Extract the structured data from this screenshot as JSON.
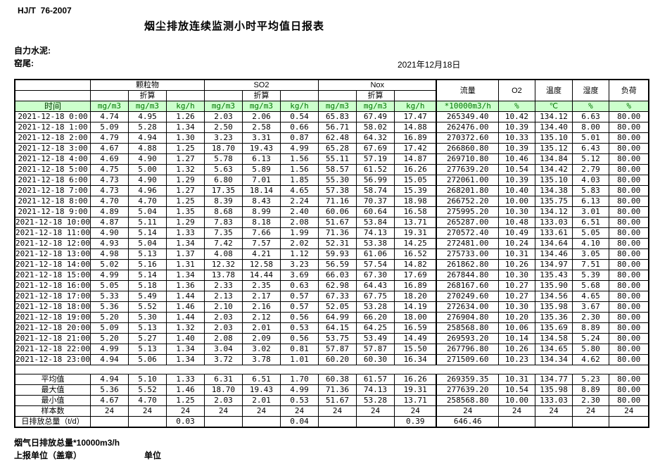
{
  "page": {
    "standard": "HJ/T  76-2007",
    "title": "烟尘排放连续监测小时平均值日报表",
    "company": "自力水泥:",
    "site": "窑尾:",
    "date": "2021年12月18日"
  },
  "colors": {
    "header_bg": "#ccffcc",
    "header_text": "#007500",
    "grid": "#000000"
  },
  "table": {
    "time_label": "时间",
    "converted_label": "折算",
    "groups": {
      "pm": "颗粒物",
      "so2": "SO2",
      "nox": "Nox",
      "flow": "流量",
      "o2": "O2",
      "temp": "温度",
      "humidity": "湿度",
      "load": "负荷"
    },
    "units": [
      "mg/m3",
      "mg/m3",
      "kg/h",
      "mg/m3",
      "mg/m3",
      "kg/h",
      "mg/m3",
      "mg/m3",
      "kg/h",
      "*10000m3/h",
      "%",
      "℃",
      "%",
      "%"
    ],
    "rows": [
      {
        "time": "2021-12-18 0:00",
        "values": [
          "4.74",
          "4.95",
          "1.26",
          "2.03",
          "2.06",
          "0.54",
          "65.83",
          "67.49",
          "17.47",
          "265349.40",
          "10.42",
          "134.12",
          "6.63",
          "80.00"
        ]
      },
      {
        "time": "2021-12-18 1:00",
        "values": [
          "5.09",
          "5.28",
          "1.34",
          "2.50",
          "2.58",
          "0.66",
          "56.71",
          "58.02",
          "14.88",
          "262476.00",
          "10.39",
          "134.40",
          "8.00",
          "80.00"
        ]
      },
      {
        "time": "2021-12-18 2:00",
        "values": [
          "4.79",
          "4.94",
          "1.30",
          "3.23",
          "3.31",
          "0.87",
          "62.48",
          "64.32",
          "16.89",
          "270372.60",
          "10.33",
          "135.10",
          "5.01",
          "80.00"
        ]
      },
      {
        "time": "2021-12-18 3:00",
        "values": [
          "4.67",
          "4.88",
          "1.25",
          "18.70",
          "19.43",
          "4.99",
          "65.28",
          "67.69",
          "17.42",
          "266860.80",
          "10.39",
          "135.12",
          "6.43",
          "80.00"
        ]
      },
      {
        "time": "2021-12-18 4:00",
        "values": [
          "4.69",
          "4.90",
          "1.27",
          "5.78",
          "6.13",
          "1.56",
          "55.11",
          "57.19",
          "14.87",
          "269710.80",
          "10.46",
          "134.84",
          "5.12",
          "80.00"
        ]
      },
      {
        "time": "2021-12-18 5:00",
        "values": [
          "4.75",
          "5.00",
          "1.32",
          "5.63",
          "5.89",
          "1.56",
          "58.57",
          "61.52",
          "16.26",
          "277639.20",
          "10.54",
          "134.42",
          "2.79",
          "80.00"
        ]
      },
      {
        "time": "2021-12-18 6:00",
        "values": [
          "4.73",
          "4.90",
          "1.29",
          "6.80",
          "7.01",
          "1.85",
          "55.30",
          "56.99",
          "15.05",
          "272061.00",
          "10.39",
          "135.10",
          "4.03",
          "80.00"
        ]
      },
      {
        "time": "2021-12-18 7:00",
        "values": [
          "4.73",
          "4.96",
          "1.27",
          "17.35",
          "18.14",
          "4.65",
          "57.38",
          "58.74",
          "15.39",
          "268201.80",
          "10.40",
          "134.38",
          "5.83",
          "80.00"
        ]
      },
      {
        "time": "2021-12-18 8:00",
        "values": [
          "4.70",
          "4.70",
          "1.25",
          "8.39",
          "8.43",
          "2.24",
          "71.16",
          "70.37",
          "18.98",
          "266752.20",
          "10.00",
          "135.75",
          "6.13",
          "80.00"
        ]
      },
      {
        "time": "2021-12-18 9:00",
        "values": [
          "4.89",
          "5.04",
          "1.35",
          "8.68",
          "8.99",
          "2.40",
          "60.06",
          "60.64",
          "16.58",
          "275995.20",
          "10.30",
          "134.12",
          "3.01",
          "80.00"
        ]
      },
      {
        "time": "2021-12-18 10:00",
        "values": [
          "4.87",
          "5.11",
          "1.29",
          "7.83",
          "8.18",
          "2.08",
          "51.67",
          "53.84",
          "13.71",
          "265287.00",
          "10.48",
          "133.03",
          "6.51",
          "80.00"
        ]
      },
      {
        "time": "2021-12-18 11:00",
        "values": [
          "4.90",
          "5.14",
          "1.33",
          "7.35",
          "7.66",
          "1.99",
          "71.36",
          "74.13",
          "19.31",
          "270572.40",
          "10.49",
          "133.61",
          "5.05",
          "80.00"
        ]
      },
      {
        "time": "2021-12-18 12:00",
        "values": [
          "4.93",
          "5.04",
          "1.34",
          "7.42",
          "7.57",
          "2.02",
          "52.31",
          "53.38",
          "14.25",
          "272481.00",
          "10.24",
          "134.64",
          "4.10",
          "80.00"
        ]
      },
      {
        "time": "2021-12-18 13:00",
        "values": [
          "4.98",
          "5.13",
          "1.37",
          "4.08",
          "4.21",
          "1.12",
          "59.93",
          "61.06",
          "16.52",
          "275733.00",
          "10.31",
          "134.46",
          "3.05",
          "80.00"
        ]
      },
      {
        "time": "2021-12-18 14:00",
        "values": [
          "5.02",
          "5.16",
          "1.31",
          "12.32",
          "12.58",
          "3.23",
          "56.59",
          "57.54",
          "14.82",
          "261862.80",
          "10.26",
          "134.97",
          "7.51",
          "80.00"
        ]
      },
      {
        "time": "2021-12-18 15:00",
        "values": [
          "4.99",
          "5.14",
          "1.34",
          "13.78",
          "14.44",
          "3.69",
          "66.03",
          "67.30",
          "17.69",
          "267844.80",
          "10.30",
          "135.43",
          "5.39",
          "80.00"
        ]
      },
      {
        "time": "2021-12-18 16:00",
        "values": [
          "5.05",
          "5.18",
          "1.36",
          "2.33",
          "2.35",
          "0.63",
          "62.98",
          "64.43",
          "16.89",
          "268167.60",
          "10.27",
          "135.90",
          "5.68",
          "80.00"
        ]
      },
      {
        "time": "2021-12-18 17:00",
        "values": [
          "5.33",
          "5.49",
          "1.44",
          "2.13",
          "2.17",
          "0.57",
          "67.33",
          "67.75",
          "18.20",
          "270249.60",
          "10.27",
          "134.56",
          "4.65",
          "80.00"
        ]
      },
      {
        "time": "2021-12-18 18:00",
        "values": [
          "5.36",
          "5.52",
          "1.46",
          "2.10",
          "2.16",
          "0.57",
          "52.05",
          "53.28",
          "14.19",
          "272634.00",
          "10.30",
          "135.98",
          "3.67",
          "80.00"
        ]
      },
      {
        "time": "2021-12-18 19:00",
        "values": [
          "5.20",
          "5.30",
          "1.44",
          "2.03",
          "2.12",
          "0.56",
          "64.99",
          "66.20",
          "18.00",
          "276904.80",
          "10.20",
          "135.36",
          "2.30",
          "80.00"
        ]
      },
      {
        "time": "2021-12-18 20:00",
        "values": [
          "5.09",
          "5.13",
          "1.32",
          "2.03",
          "2.01",
          "0.53",
          "64.15",
          "64.25",
          "16.59",
          "258568.80",
          "10.06",
          "135.69",
          "8.89",
          "80.00"
        ]
      },
      {
        "time": "2021-12-18 21:00",
        "values": [
          "5.20",
          "5.27",
          "1.40",
          "2.08",
          "2.09",
          "0.56",
          "53.75",
          "53.49",
          "14.49",
          "269593.20",
          "10.14",
          "134.58",
          "5.24",
          "80.00"
        ]
      },
      {
        "time": "2021-12-18 22:00",
        "values": [
          "4.99",
          "5.13",
          "1.34",
          "3.04",
          "3.02",
          "0.81",
          "57.87",
          "57.87",
          "15.50",
          "267796.80",
          "10.26",
          "134.65",
          "5.80",
          "80.00"
        ]
      },
      {
        "time": "2021-12-18 23:00",
        "values": [
          "4.94",
          "5.06",
          "1.34",
          "3.72",
          "3.78",
          "1.01",
          "60.20",
          "60.30",
          "16.34",
          "271509.60",
          "10.23",
          "134.34",
          "4.62",
          "80.00"
        ]
      }
    ],
    "summary": [
      {
        "label": "平均值",
        "values": [
          "4.94",
          "5.10",
          "1.33",
          "6.31",
          "6.51",
          "1.70",
          "60.38",
          "61.57",
          "16.26",
          "269359.35",
          "10.31",
          "134.77",
          "5.23",
          "80.00"
        ]
      },
      {
        "label": "最大值",
        "values": [
          "5.36",
          "5.52",
          "1.46",
          "18.70",
          "19.43",
          "4.99",
          "71.36",
          "74.13",
          "19.31",
          "277639.20",
          "10.54",
          "135.98",
          "8.89",
          "80.00"
        ]
      },
      {
        "label": "最小值",
        "values": [
          "4.67",
          "4.70",
          "1.25",
          "2.03",
          "2.01",
          "0.53",
          "51.67",
          "53.28",
          "13.71",
          "258568.80",
          "10.00",
          "133.03",
          "2.30",
          "80.00"
        ]
      },
      {
        "label": "样本数",
        "values": [
          "24",
          "24",
          "24",
          "24",
          "24",
          "24",
          "24",
          "24",
          "24",
          "24",
          "24",
          "24",
          "24",
          "24"
        ]
      },
      {
        "label": "日排放总量（t/d）",
        "values": [
          "",
          "",
          "0.03",
          "",
          "",
          "0.04",
          "",
          "",
          "0.39",
          "646.46",
          "",
          "",
          "",
          ""
        ]
      }
    ]
  },
  "footer": {
    "flue_total": "烟气日排放总量*10000m3/h",
    "report_unit": "上报单位（盖章）",
    "unit_label": "单位"
  }
}
